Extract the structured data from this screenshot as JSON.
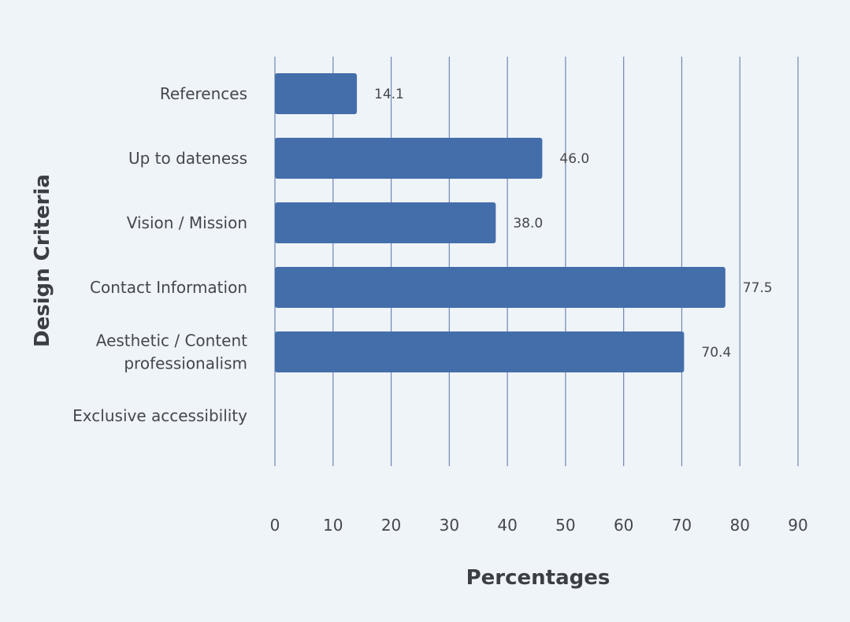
{
  "chart_data": {
    "type": "bar",
    "orientation": "horizontal",
    "categories": [
      "References",
      "Up to dateness",
      "Vision / Mission",
      "Contact Information",
      "Aesthetic / Content professionalism",
      "Exclusive accessibility"
    ],
    "category_lines": [
      [
        "References"
      ],
      [
        "Up to dateness"
      ],
      [
        "Vision / Mission"
      ],
      [
        "Contact Information"
      ],
      [
        "Aesthetic / Content",
        "professionalism"
      ],
      [
        "Exclusive accessibility"
      ]
    ],
    "values": [
      14.1,
      46.0,
      38.0,
      77.5,
      70.4,
      null
    ],
    "data_labels": [
      "14.1",
      "46.0",
      "38.0",
      "77.5",
      "70.4",
      ""
    ],
    "xlabel": "Percentages",
    "ylabel": "Design Criteria",
    "xlim": [
      0,
      90
    ],
    "xticks": [
      0,
      10,
      20,
      30,
      40,
      50,
      60,
      70,
      80,
      90
    ],
    "grid": "vertical",
    "colors": {
      "background": "#eff4f9",
      "bar": "#446eaa",
      "grid": "#6f86b3"
    }
  }
}
